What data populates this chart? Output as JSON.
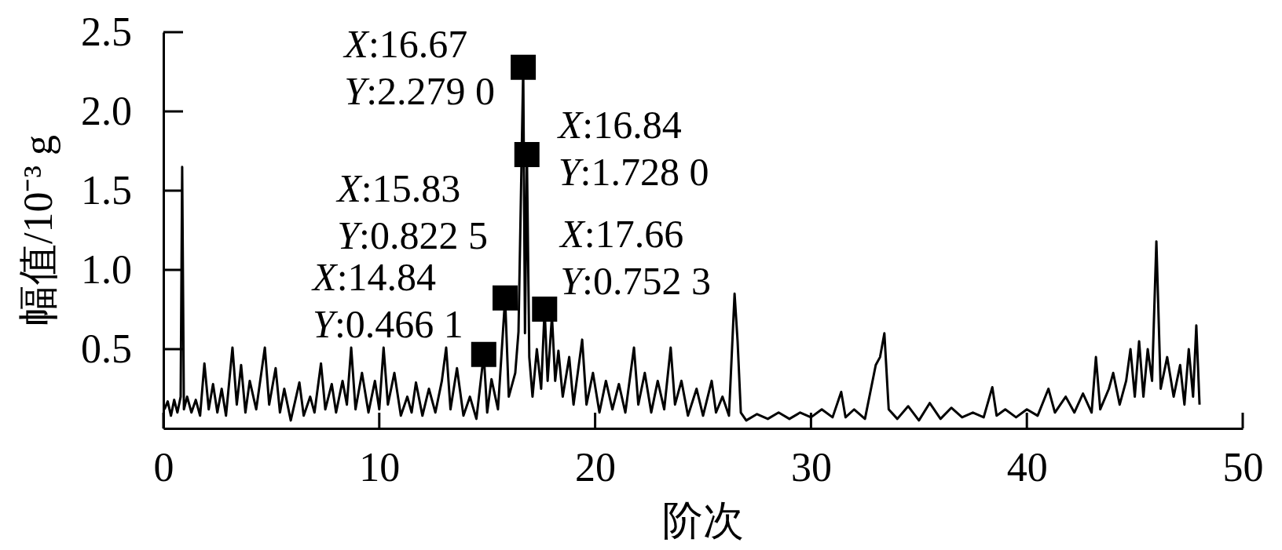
{
  "chart_data": {
    "type": "line",
    "xlabel": "阶次",
    "ylabel": "幅值/10⁻³ g",
    "xlim": [
      0,
      50
    ],
    "xticks": [
      0,
      10,
      20,
      30,
      40,
      50
    ],
    "ylim": [
      0,
      2.5
    ],
    "yticks": [
      0.5,
      {
        "value": 1,
        "label": "1.0"
      },
      1.5,
      {
        "value": 2,
        "label": "2.0"
      },
      2.5
    ],
    "series": [
      {
        "color": "#000000",
        "x": [
          0.05,
          0.2,
          0.35,
          0.5,
          0.65,
          0.8,
          0.87,
          0.95,
          1.1,
          1.3,
          1.5,
          1.7,
          1.9,
          2.1,
          2.3,
          2.5,
          2.7,
          2.9,
          3.2,
          3.4,
          3.6,
          3.8,
          4.0,
          4.3,
          4.7,
          4.9,
          5.2,
          5.4,
          5.6,
          5.9,
          6.3,
          6.5,
          6.8,
          7.0,
          7.3,
          7.5,
          7.8,
          8.0,
          8.3,
          8.5,
          8.7,
          8.9,
          9.2,
          9.5,
          9.8,
          10.0,
          10.2,
          10.4,
          10.7,
          11.0,
          11.3,
          11.5,
          11.7,
          12.0,
          12.3,
          12.6,
          12.9,
          13.1,
          13.3,
          13.6,
          13.9,
          14.2,
          14.5,
          14.84,
          15.0,
          15.2,
          15.5,
          15.83,
          16.0,
          16.3,
          16.45,
          16.67,
          16.75,
          16.84,
          16.95,
          17.1,
          17.3,
          17.5,
          17.66,
          17.8,
          18.0,
          18.15,
          18.3,
          18.5,
          18.8,
          19.0,
          19.4,
          19.6,
          19.9,
          20.2,
          20.5,
          20.8,
          21.1,
          21.4,
          21.8,
          22.0,
          22.3,
          22.6,
          22.9,
          23.2,
          23.5,
          23.7,
          24.0,
          24.3,
          24.7,
          25.0,
          25.4,
          25.6,
          25.9,
          26.2,
          26.46,
          26.6,
          26.75,
          27.0,
          27.5,
          28.0,
          28.5,
          29.0,
          29.5,
          30.0,
          30.5,
          31.0,
          31.4,
          31.6,
          32.0,
          32.5,
          33.0,
          33.2,
          33.4,
          33.6,
          34.0,
          34.5,
          35.0,
          35.5,
          36.0,
          36.5,
          37.0,
          37.5,
          38.0,
          38.4,
          38.6,
          39.0,
          39.5,
          40.0,
          40.5,
          41.0,
          41.3,
          41.8,
          42.2,
          42.6,
          43.0,
          43.2,
          43.4,
          43.8,
          44.0,
          44.3,
          44.6,
          44.8,
          45.0,
          45.2,
          45.4,
          45.6,
          45.8,
          46.0,
          46.2,
          46.5,
          46.8,
          47.1,
          47.3,
          47.5,
          47.7,
          47.85,
          48.0
        ],
        "values": [
          0.12,
          0.17,
          0.08,
          0.18,
          0.1,
          0.2,
          1.65,
          0.12,
          0.2,
          0.1,
          0.18,
          0.08,
          0.41,
          0.12,
          0.28,
          0.1,
          0.25,
          0.08,
          0.51,
          0.15,
          0.4,
          0.1,
          0.3,
          0.12,
          0.51,
          0.15,
          0.38,
          0.1,
          0.25,
          0.05,
          0.29,
          0.08,
          0.2,
          0.1,
          0.41,
          0.12,
          0.28,
          0.1,
          0.3,
          0.15,
          0.51,
          0.12,
          0.35,
          0.1,
          0.3,
          0.12,
          0.51,
          0.15,
          0.35,
          0.08,
          0.2,
          0.1,
          0.29,
          0.08,
          0.25,
          0.1,
          0.3,
          0.51,
          0.12,
          0.38,
          0.08,
          0.2,
          0.06,
          0.4661,
          0.1,
          0.31,
          0.12,
          0.8225,
          0.2,
          0.35,
          0.61,
          2.279,
          0.6,
          1.728,
          0.45,
          0.2,
          0.5,
          0.25,
          0.7523,
          0.3,
          0.71,
          0.3,
          0.49,
          0.2,
          0.45,
          0.15,
          0.56,
          0.15,
          0.35,
          0.1,
          0.3,
          0.12,
          0.28,
          0.1,
          0.51,
          0.15,
          0.35,
          0.1,
          0.3,
          0.12,
          0.51,
          0.15,
          0.3,
          0.08,
          0.25,
          0.08,
          0.3,
          0.1,
          0.2,
          0.08,
          0.85,
          0.55,
          0.1,
          0.05,
          0.09,
          0.06,
          0.1,
          0.06,
          0.1,
          0.07,
          0.12,
          0.07,
          0.23,
          0.07,
          0.12,
          0.06,
          0.4,
          0.45,
          0.6,
          0.12,
          0.06,
          0.14,
          0.05,
          0.16,
          0.06,
          0.13,
          0.07,
          0.1,
          0.07,
          0.26,
          0.08,
          0.12,
          0.07,
          0.12,
          0.08,
          0.25,
          0.1,
          0.2,
          0.1,
          0.22,
          0.1,
          0.45,
          0.12,
          0.25,
          0.35,
          0.15,
          0.3,
          0.5,
          0.2,
          0.55,
          0.2,
          0.5,
          0.3,
          1.18,
          0.25,
          0.45,
          0.2,
          0.4,
          0.15,
          0.5,
          0.2,
          0.65,
          0.15
        ]
      },
      {
        "type": "scatter",
        "color": "#000000",
        "marker": "square",
        "x": [
          14.84,
          15.83,
          16.67,
          16.84,
          17.66
        ],
        "values": [
          0.4661,
          0.8225,
          2.279,
          1.728,
          0.7523
        ]
      }
    ],
    "annotations": [
      {
        "text": "X:14.84\nY:0.466 1",
        "x": 14.84,
        "y": 0.4661
      },
      {
        "text": "X:15.83\nY:0.822 5",
        "x": 15.83,
        "y": 0.8225
      },
      {
        "text": "X:16.67\nY:2.279 0",
        "x": 16.67,
        "y": 2.279
      },
      {
        "text": "X:16.84\nY:1.728 0",
        "x": 16.84,
        "y": 1.728
      },
      {
        "text": "X:17.66\nY:0.752 3",
        "x": 17.66,
        "y": 0.7523
      }
    ]
  }
}
